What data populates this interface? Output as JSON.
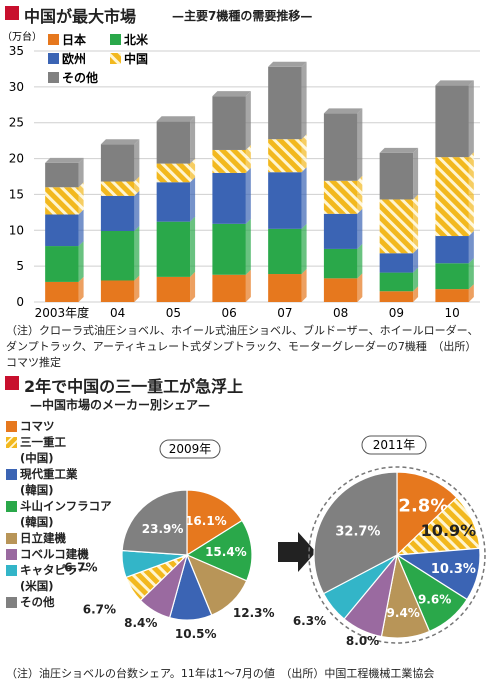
{
  "section1": {
    "title": "中国が最大市場",
    "subtitle": "—主要7機種の需要推移—",
    "unit": "（万台）",
    "note": "（注）クローラ式油圧ショベル、ホイール式油圧ショベル、ブルドーザー、ホイールローダー、ダンプトラック、アーティキュレート式ダンプトラック、モーターグレーダーの7機種　（出所）コマツ推定"
  },
  "section2": {
    "title": "2年で中国の三一重工が急浮上",
    "subtitle": "—中国市場のメーカー別シェア—",
    "note": "（注）油圧ショベルの台数シェア。11年は1〜7月の値　（出所）中国工程機械工業協会"
  },
  "colors": {
    "japan": "#e6781e",
    "namerica": "#2aa84a",
    "europe": "#3b64b4",
    "china": "#f2b81e",
    "other": "#808080",
    "red_square": "#c8102e",
    "sany_stripe": "#ffffff",
    "liugong": "#b89558",
    "cobelco": "#9a6aa0",
    "cat": "#33b5c8"
  },
  "chart_data": [
    {
      "type": "bar",
      "stacked": true,
      "categories": [
        "2003年度",
        "04",
        "05",
        "06",
        "07",
        "08",
        "09",
        "10"
      ],
      "series": [
        {
          "name": "日本",
          "color": "#e6781e",
          "values": [
            2.8,
            3.0,
            3.5,
            3.8,
            3.9,
            3.3,
            1.5,
            1.8
          ]
        },
        {
          "name": "北米",
          "color": "#2aa84a",
          "values": [
            5.0,
            6.9,
            7.7,
            7.1,
            6.3,
            4.1,
            2.6,
            3.6
          ]
        },
        {
          "name": "欧州",
          "color": "#3b64b4",
          "values": [
            4.4,
            4.9,
            5.5,
            7.1,
            7.9,
            4.9,
            2.7,
            3.8
          ]
        },
        {
          "name": "中国",
          "color": "#f2b81e",
          "hatched": true,
          "values": [
            3.8,
            2.0,
            2.6,
            3.2,
            4.6,
            4.6,
            7.5,
            11.0
          ]
        },
        {
          "name": "その他",
          "color": "#808080",
          "values": [
            3.4,
            5.2,
            5.9,
            7.5,
            10.1,
            9.4,
            6.5,
            10.0
          ]
        }
      ],
      "ylim": [
        0,
        35
      ],
      "yticks": [
        0,
        5,
        10,
        15,
        20,
        25,
        30,
        35
      ],
      "ylabel": "（万台）",
      "grid": true,
      "legend": "top-left"
    },
    {
      "type": "pie",
      "title": "2009年",
      "slices": [
        {
          "name": "コマツ",
          "value": 16.1,
          "label": "16.1%",
          "color": "#e6781e"
        },
        {
          "name": "斗山インフラコア",
          "value": 15.4,
          "label": "15.4%",
          "color": "#2aa84a"
        },
        {
          "name": "日立建機",
          "value": 12.3,
          "label": "12.3%",
          "color": "#b89558"
        },
        {
          "name": "現代重工業",
          "value": 10.5,
          "label": "10.5%",
          "color": "#3b64b4"
        },
        {
          "name": "コベルコ建機",
          "value": 8.4,
          "label": "8.4%",
          "color": "#9a6aa0"
        },
        {
          "name": "三一重工",
          "value": 6.7,
          "label": "6.7%",
          "color": "#f2b81e",
          "hatched": true
        },
        {
          "name": "キャタピラー",
          "value": 6.7,
          "label": "6.7%",
          "color": "#33b5c8"
        },
        {
          "name": "その他",
          "value": 23.9,
          "label": "23.9%",
          "color": "#808080"
        }
      ]
    },
    {
      "type": "pie",
      "title": "2011年",
      "slices": [
        {
          "name": "コマツ",
          "value": 12.8,
          "label": "12.8%",
          "color": "#e6781e"
        },
        {
          "name": "三一重工",
          "value": 10.9,
          "label": "10.9%",
          "color": "#f2b81e",
          "hatched": true
        },
        {
          "name": "現代重工業",
          "value": 10.3,
          "label": "10.3%",
          "color": "#3b64b4"
        },
        {
          "name": "斗山インフラコア",
          "value": 9.6,
          "label": "9.6%",
          "color": "#2aa84a"
        },
        {
          "name": "日立建機",
          "value": 9.4,
          "label": "9.4%",
          "color": "#b89558"
        },
        {
          "name": "コベルコ建機",
          "value": 8.0,
          "label": "8.0%",
          "color": "#9a6aa0"
        },
        {
          "name": "キャタピラー",
          "value": 6.3,
          "label": "6.3%",
          "color": "#33b5c8"
        },
        {
          "name": "その他",
          "value": 32.7,
          "label": "32.7%",
          "color": "#808080"
        }
      ]
    }
  ],
  "pie_legend": [
    {
      "label": "コマツ",
      "color": "#e6781e"
    },
    {
      "label": "三一重工",
      "sub": "(中国)",
      "color": "#f2b81e",
      "hatched": true
    },
    {
      "label": "現代重工業",
      "sub": "(韓国)",
      "color": "#3b64b4"
    },
    {
      "label": "斗山インフラコア",
      "sub": "(韓国)",
      "color": "#2aa84a"
    },
    {
      "label": "日立建機",
      "color": "#b89558"
    },
    {
      "label": "コベルコ建機",
      "color": "#9a6aa0"
    },
    {
      "label": "キャタピラー",
      "sub": "(米国)",
      "color": "#33b5c8"
    },
    {
      "label": "その他",
      "color": "#808080"
    }
  ]
}
